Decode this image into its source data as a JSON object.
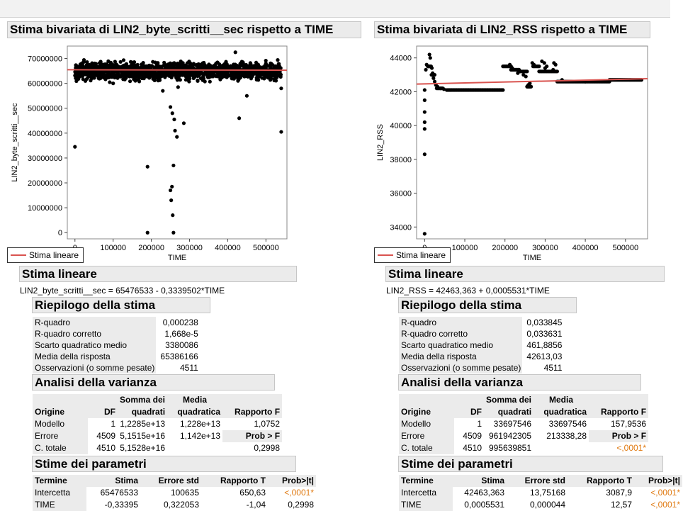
{
  "reports": [
    {
      "title": "Stima bivariata di LIN2_byte_scritti__sec rispetto a TIME",
      "legend_label": "Stima lineare",
      "fit_header": "Stima lineare",
      "equation": "LIN2_byte_scritti__sec = 65476533 - 0,3339502*TIME",
      "summary": {
        "header": "Riepilogo della stima",
        "rows": [
          {
            "label": "R-quadro",
            "value": "0,000238"
          },
          {
            "label": "R-quadro corretto",
            "value": "1,668e-5"
          },
          {
            "label": "Scarto quadratico medio",
            "value": "3380086"
          },
          {
            "label": "Media della risposta",
            "value": "65386166"
          },
          {
            "label": "Osservazioni (o somme pesate)",
            "value": "4511"
          }
        ]
      },
      "anova": {
        "header": "Analisi della varianza",
        "col_top": [
          "",
          "",
          "Somma dei",
          "Media",
          ""
        ],
        "col_bottom": [
          "Origine",
          "DF",
          "quadrati",
          "quadratica",
          "Rapporto F"
        ],
        "rows": [
          {
            "source": "Modello",
            "df": "1",
            "ss": "1,2285e+13",
            "ms": "1,228e+13",
            "f": "1,0752"
          },
          {
            "source": "Errore",
            "df": "4509",
            "ss": "5,1515e+16",
            "ms": "1,142e+13",
            "f": "Prob > F"
          },
          {
            "source": "C. totale",
            "df": "4510",
            "ss": "5,1528e+16",
            "ms": "",
            "f": "0,2998"
          }
        ]
      },
      "params": {
        "header": "Stime dei parametri",
        "cols": [
          "Termine",
          "Stima",
          "Errore std",
          "Rapporto T",
          "Prob>|t|"
        ],
        "rows": [
          {
            "term": "Intercetta",
            "est": "65476533",
            "se": "100635",
            "t": "650,63",
            "p": "<,0001*"
          },
          {
            "term": "TIME",
            "est": "-0,33395",
            "se": "0,322053",
            "t": "-1,04",
            "p": "0,2998"
          }
        ]
      }
    },
    {
      "title": "Stima bivariata di LIN2_RSS rispetto a TIME",
      "legend_label": "Stima lineare",
      "fit_header": "Stima lineare",
      "equation": "LIN2_RSS = 42463,363 + 0,0005531*TIME",
      "summary": {
        "header": "Riepilogo della stima",
        "rows": [
          {
            "label": "R-quadro",
            "value": "0,033845"
          },
          {
            "label": "R-quadro corretto",
            "value": "0,033631"
          },
          {
            "label": "Scarto quadratico medio",
            "value": "461,8856"
          },
          {
            "label": "Media della risposta",
            "value": "42613,03"
          },
          {
            "label": "Osservazioni (o somme pesate)",
            "value": "4511"
          }
        ]
      },
      "anova": {
        "header": "Analisi della varianza",
        "col_top": [
          "",
          "",
          "Somma dei",
          "Media",
          ""
        ],
        "col_bottom": [
          "Origine",
          "DF",
          "quadrati",
          "quadratica",
          "Rapporto F"
        ],
        "rows": [
          {
            "source": "Modello",
            "df": "1",
            "ss": "33697546",
            "ms": "33697546",
            "f": "157,9536"
          },
          {
            "source": "Errore",
            "df": "4509",
            "ss": "961942305",
            "ms": "213338,28",
            "f": "Prob > F"
          },
          {
            "source": "C. totale",
            "df": "4510",
            "ss": "995639851",
            "ms": "",
            "f": "<,0001*"
          }
        ]
      },
      "params": {
        "header": "Stime dei parametri",
        "cols": [
          "Termine",
          "Stima",
          "Errore std",
          "Rapporto T",
          "Prob>|t|"
        ],
        "rows": [
          {
            "term": "Intercetta",
            "est": "42463,363",
            "se": "13,75168",
            "t": "3087,9",
            "p": "<,0001*"
          },
          {
            "term": "TIME",
            "est": "0,0005531",
            "se": "0,000044",
            "t": "12,57",
            "p": "<,0001*"
          }
        ]
      }
    }
  ],
  "chart_data": [
    {
      "type": "scatter",
      "title": "",
      "xlabel": "TIME",
      "ylabel": "LIN2_byte_scritti__sec",
      "xlim": [
        -20000,
        555000
      ],
      "ylim": [
        -2500000,
        75000000
      ],
      "xticks": [
        0,
        100000,
        200000,
        300000,
        400000,
        500000
      ],
      "yticks": [
        0,
        10000000,
        20000000,
        30000000,
        40000000,
        50000000,
        60000000,
        70000000
      ],
      "xtick_labels": [
        "0",
        "100000",
        "200000",
        "300000",
        "400000",
        "500000"
      ],
      "ytick_labels": [
        "0",
        "10000000",
        "20000000",
        "30000000",
        "40000000",
        "50000000",
        "60000000",
        "70000000"
      ],
      "grid": false,
      "fit_line": {
        "intercept": 65476533,
        "slope": -0.3339502,
        "color": "#d9534f"
      },
      "band": {
        "x_range": [
          0,
          540000
        ],
        "y_range": [
          60000000,
          70000000
        ],
        "note": "dense band of ~4500 observations"
      },
      "outliers": [
        [
          0,
          34500000
        ],
        [
          100000,
          60000000
        ],
        [
          190000,
          26500000
        ],
        [
          190000,
          0
        ],
        [
          250000,
          50500000
        ],
        [
          255000,
          48000000
        ],
        [
          260000,
          45500000
        ],
        [
          262000,
          41000000
        ],
        [
          267000,
          38500000
        ],
        [
          285000,
          44000000
        ],
        [
          250000,
          17000000
        ],
        [
          252000,
          13000000
        ],
        [
          254000,
          18500000
        ],
        [
          258000,
          27000000
        ],
        [
          256000,
          7000000
        ],
        [
          258000,
          0
        ],
        [
          430000,
          46000000
        ],
        [
          450000,
          55000000
        ],
        [
          540000,
          40500000
        ],
        [
          540000,
          58000000
        ],
        [
          420000,
          72500000
        ],
        [
          270000,
          58500000
        ],
        [
          230000,
          57000000
        ]
      ]
    },
    {
      "type": "scatter",
      "title": "",
      "xlabel": "TIME",
      "ylabel": "LIN2_RSS",
      "xlim": [
        -20000,
        555000
      ],
      "ylim": [
        33300,
        44700
      ],
      "xticks": [
        0,
        100000,
        200000,
        300000,
        400000,
        500000
      ],
      "yticks": [
        34000,
        36000,
        38000,
        40000,
        42000,
        44000
      ],
      "xtick_labels": [
        "0",
        "100000",
        "200000",
        "300000",
        "400000",
        "500000"
      ],
      "ytick_labels": [
        "34000",
        "36000",
        "38000",
        "40000",
        "42000",
        "44000"
      ],
      "grid": false,
      "fit_line": {
        "intercept": 42463.363,
        "slope": 0.0005531,
        "color": "#d9534f"
      },
      "segments": [
        {
          "x": [
            8000,
            16000
          ],
          "y": [
            43500,
            43500
          ]
        },
        {
          "x": [
            17000,
            25000
          ],
          "y": [
            43000,
            43000
          ]
        },
        {
          "x": [
            30000,
            45000
          ],
          "y": [
            42200,
            42200
          ]
        },
        {
          "x": [
            55000,
            195000
          ],
          "y": [
            42100,
            42100
          ]
        },
        {
          "x": [
            195000,
            215000
          ],
          "y": [
            43500,
            43500
          ]
        },
        {
          "x": [
            215000,
            235000
          ],
          "y": [
            43300,
            43300
          ]
        },
        {
          "x": [
            235000,
            255000
          ],
          "y": [
            43200,
            43200
          ]
        },
        {
          "x": [
            255000,
            265000
          ],
          "y": [
            42300,
            42300
          ]
        },
        {
          "x": [
            270000,
            285000
          ],
          "y": [
            43500,
            43500
          ]
        },
        {
          "x": [
            285000,
            330000
          ],
          "y": [
            43200,
            43200
          ]
        },
        {
          "x": [
            330000,
            400000
          ],
          "y": [
            42600,
            42600
          ]
        },
        {
          "x": [
            400000,
            460000
          ],
          "y": [
            42600,
            42600
          ]
        },
        {
          "x": [
            460000,
            540000
          ],
          "y": [
            42700,
            42700
          ]
        }
      ],
      "points": [
        [
          0,
          33600
        ],
        [
          0,
          38300
        ],
        [
          0,
          39800
        ],
        [
          0,
          40200
        ],
        [
          0,
          40800
        ],
        [
          0,
          41500
        ],
        [
          0,
          42100
        ],
        [
          3000,
          43300
        ],
        [
          5000,
          43600
        ],
        [
          12000,
          44200
        ],
        [
          14000,
          44000
        ],
        [
          18000,
          43400
        ],
        [
          20000,
          43100
        ],
        [
          22000,
          42800
        ],
        [
          25000,
          42600
        ],
        [
          28000,
          42400
        ],
        [
          32000,
          42300
        ],
        [
          40000,
          42200
        ],
        [
          48000,
          42150
        ],
        [
          212000,
          43600
        ],
        [
          218000,
          43400
        ],
        [
          232000,
          43100
        ],
        [
          246000,
          43000
        ],
        [
          252000,
          42900
        ],
        [
          258000,
          42400
        ],
        [
          262000,
          42500
        ],
        [
          268000,
          43700
        ],
        [
          272000,
          43600
        ],
        [
          292000,
          43800
        ],
        [
          298000,
          43700
        ],
        [
          300000,
          43400
        ],
        [
          304000,
          43500
        ],
        [
          320000,
          43300
        ],
        [
          322000,
          43700
        ],
        [
          326000,
          43600
        ],
        [
          342000,
          42700
        ]
      ]
    }
  ]
}
